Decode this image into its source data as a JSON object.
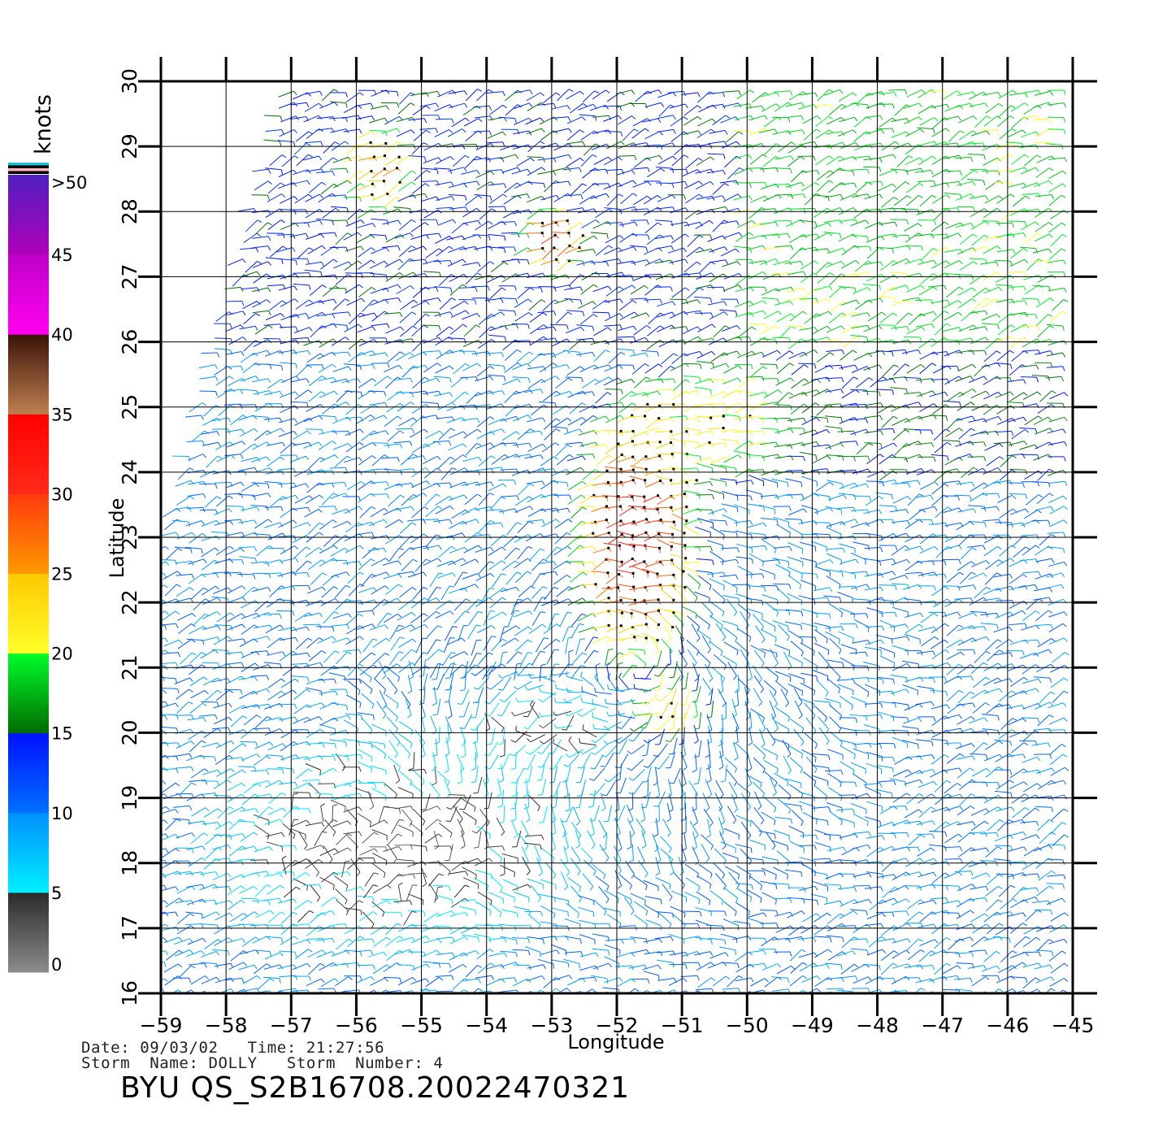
{
  "map": {
    "xlabel": "Longitude",
    "ylabel": "Latitude",
    "lon_range": [
      -59,
      -45
    ],
    "lat_range": [
      16,
      30
    ],
    "lon_ticks": [
      "−59",
      "−58",
      "−57",
      "−56",
      "−55",
      "−54",
      "−53",
      "−52",
      "−51",
      "−50",
      "−49",
      "−48",
      "−47",
      "−46",
      "−45"
    ],
    "lat_ticks": [
      "16",
      "17",
      "18",
      "19",
      "20",
      "21",
      "22",
      "23",
      "24",
      "25",
      "26",
      "27",
      "28",
      "29",
      "30"
    ],
    "grid": true,
    "swath_west_edge": [
      [
        -57.0,
        30.0
      ],
      [
        -59.0,
        22.5
      ]
    ]
  },
  "colorbar": {
    "title": "knots",
    "labels": [
      ">50",
      "45",
      "40",
      "35",
      "30",
      "25",
      "20",
      "15",
      "10",
      "5",
      "0"
    ],
    "stops": [
      {
        "from": 0,
        "to": 5,
        "colors": [
          "#8c8c8c",
          "#2a2a2a"
        ]
      },
      {
        "from": 5,
        "to": 10,
        "colors": [
          "#00f0ff",
          "#0090ff"
        ]
      },
      {
        "from": 10,
        "to": 15,
        "colors": [
          "#0070ff",
          "#0010ff"
        ]
      },
      {
        "from": 15,
        "to": 20,
        "colors": [
          "#006a00",
          "#00ff2a"
        ]
      },
      {
        "from": 20,
        "to": 25,
        "colors": [
          "#ffff2a",
          "#ffc800"
        ]
      },
      {
        "from": 25,
        "to": 30,
        "colors": [
          "#ff9900",
          "#ff3a0e"
        ]
      },
      {
        "from": 30,
        "to": 35,
        "colors": [
          "#ff2a1a",
          "#ff0000"
        ]
      },
      {
        "from": 35,
        "to": 40,
        "colors": [
          "#c08050",
          "#3a1208"
        ]
      },
      {
        "from": 40,
        "to": 45,
        "colors": [
          "#ff00f0",
          "#c000c8"
        ]
      },
      {
        "from": 45,
        "to": 50,
        "colors": [
          "#b000b8",
          "#5020c0"
        ]
      }
    ],
    "over_colors": [
      "#20c0d0",
      "#000000",
      "#ffb0c0",
      "#000000"
    ]
  },
  "wind_field": {
    "description_units": "knots",
    "speed_regions": [
      {
        "lon": -51.6,
        "lat": 23.1,
        "lon_radius": 1.2,
        "lat_radius": 2.6,
        "speed": 32
      },
      {
        "lon": -52.9,
        "lat": 27.6,
        "lon_radius": 0.6,
        "lat_radius": 0.6,
        "speed": 30
      },
      {
        "lon": -55.6,
        "lat": 28.7,
        "lon_radius": 0.6,
        "lat_radius": 0.8,
        "speed": 26
      },
      {
        "lon": -51.2,
        "lat": 20.3,
        "lon_radius": 0.8,
        "lat_radius": 0.6,
        "speed": 24
      },
      {
        "lon": -50.5,
        "lat": 24.8,
        "lon_radius": 1.5,
        "lat_radius": 1.4,
        "speed": 22
      },
      {
        "lon": -48.0,
        "lat": 28.5,
        "lon_radius": 2.2,
        "lat_radius": 1.5,
        "speed": 18
      },
      {
        "lon": -55.3,
        "lat": 18.3,
        "lon_radius": 3.5,
        "lat_radius": 2.0,
        "speed": 3
      },
      {
        "lon": -53.2,
        "lat": 20.0,
        "lon_radius": 1.3,
        "lat_radius": 0.8,
        "speed": 4
      }
    ],
    "background_speed": 10,
    "circulation_center": [
      -51.7,
      21.0
    ]
  },
  "caption": {
    "line1": "Date: 09/03/02   Time: 21:27:56",
    "line2": "Storm  Name: DOLLY   Storm  Number: 4",
    "product_id": "BYU  QS_S2B16708.20022470321"
  }
}
